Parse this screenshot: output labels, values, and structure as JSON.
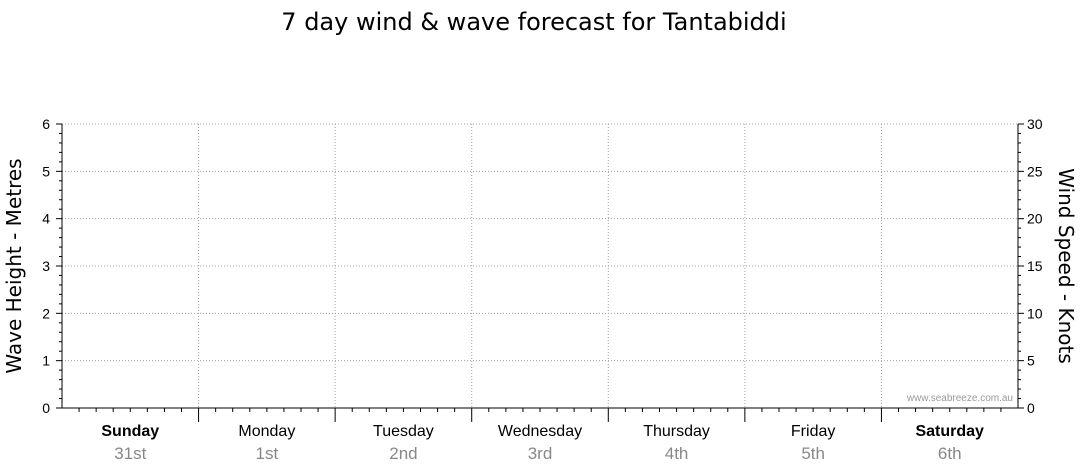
{
  "chart_data": {
    "type": "line",
    "title": "7 day wind & wave forecast for Tantabiddi",
    "ylabel_left": "Wave Height - Metres",
    "ylabel_right": "Wind Speed - Knots",
    "ylim_left": [
      0,
      6
    ],
    "ylim_right": [
      0,
      30
    ],
    "yticks_left": [
      "0",
      "1",
      "2",
      "3",
      "4",
      "5",
      "6"
    ],
    "yticks_right": [
      "0",
      "5",
      "10",
      "15",
      "20",
      "25",
      "30"
    ],
    "grid": true,
    "days": [
      {
        "name": "Sunday",
        "date": "31st",
        "bold": true
      },
      {
        "name": "Monday",
        "date": "1st",
        "bold": false
      },
      {
        "name": "Tuesday",
        "date": "2nd",
        "bold": false
      },
      {
        "name": "Wednesday",
        "date": "3rd",
        "bold": false
      },
      {
        "name": "Thursday",
        "date": "4th",
        "bold": false
      },
      {
        "name": "Friday",
        "date": "5th",
        "bold": false
      },
      {
        "name": "Saturday",
        "date": "6th",
        "bold": true
      }
    ],
    "series": [],
    "watermark": "www.seabreeze.com.au"
  }
}
